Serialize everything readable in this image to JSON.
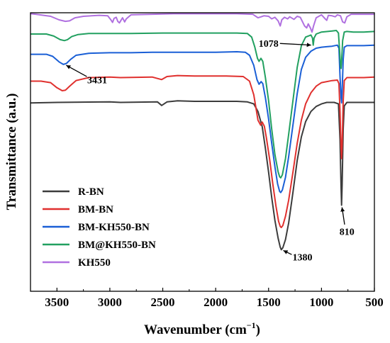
{
  "chart_data": {
    "type": "line",
    "xlabel": "Wavenumber (cm",
    "xlabel_sup": "−1",
    "xlabel_close": ")",
    "ylabel": "Transmittance (a.u.)",
    "xlim": [
      3750,
      500
    ],
    "x_reversed": true,
    "ylim": [
      0,
      5.5
    ],
    "y_ticks_labeled": false,
    "x_ticks": [
      3500,
      3000,
      2500,
      2000,
      1500,
      1000,
      500
    ],
    "x_tick_labels": [
      "3500",
      "3000",
      "2500",
      "2000",
      "1500",
      "1000",
      "500"
    ],
    "legend_position": "bottom-left",
    "grid": false,
    "series": [
      {
        "name": "R-BN",
        "color": "#3c3c3c",
        "points": [
          [
            3750,
            3.72
          ],
          [
            3500,
            3.73
          ],
          [
            3000,
            3.74
          ],
          [
            2900,
            3.73
          ],
          [
            2550,
            3.74
          ],
          [
            2510,
            3.67
          ],
          [
            2460,
            3.74
          ],
          [
            2360,
            3.76
          ],
          [
            2200,
            3.75
          ],
          [
            1800,
            3.75
          ],
          [
            1700,
            3.74
          ],
          [
            1640,
            3.7
          ],
          [
            1600,
            3.55
          ],
          [
            1560,
            3.25
          ],
          [
            1530,
            2.82
          ],
          [
            1500,
            2.35
          ],
          [
            1470,
            1.85
          ],
          [
            1440,
            1.4
          ],
          [
            1410,
            1.05
          ],
          [
            1390,
            0.87
          ],
          [
            1380,
            0.82
          ],
          [
            1365,
            0.86
          ],
          [
            1340,
            1.02
          ],
          [
            1310,
            1.35
          ],
          [
            1270,
            1.95
          ],
          [
            1230,
            2.58
          ],
          [
            1190,
            3.05
          ],
          [
            1150,
            3.35
          ],
          [
            1100,
            3.55
          ],
          [
            1050,
            3.65
          ],
          [
            1000,
            3.7
          ],
          [
            950,
            3.73
          ],
          [
            880,
            3.73
          ],
          [
            840,
            3.7
          ],
          [
            825,
            3.0
          ],
          [
            815,
            2.05
          ],
          [
            810,
            1.7
          ],
          [
            805,
            2.1
          ],
          [
            795,
            3.2
          ],
          [
            785,
            3.66
          ],
          [
            760,
            3.73
          ],
          [
            700,
            3.73
          ],
          [
            600,
            3.73
          ],
          [
            500,
            3.73
          ]
        ]
      },
      {
        "name": "BM-BN",
        "color": "#e0302e",
        "points": [
          [
            3750,
            4.15
          ],
          [
            3650,
            4.15
          ],
          [
            3560,
            4.12
          ],
          [
            3500,
            4.02
          ],
          [
            3450,
            3.96
          ],
          [
            3420,
            3.97
          ],
          [
            3380,
            4.05
          ],
          [
            3320,
            4.16
          ],
          [
            3200,
            4.22
          ],
          [
            3000,
            4.23
          ],
          [
            2900,
            4.22
          ],
          [
            2600,
            4.23
          ],
          [
            2510,
            4.18
          ],
          [
            2460,
            4.24
          ],
          [
            2360,
            4.26
          ],
          [
            2200,
            4.25
          ],
          [
            1900,
            4.25
          ],
          [
            1740,
            4.24
          ],
          [
            1680,
            4.15
          ],
          [
            1640,
            3.88
          ],
          [
            1600,
            3.38
          ],
          [
            1575,
            3.28
          ],
          [
            1560,
            3.34
          ],
          [
            1540,
            3.26
          ],
          [
            1520,
            3.02
          ],
          [
            1490,
            2.6
          ],
          [
            1460,
            2.12
          ],
          [
            1430,
            1.68
          ],
          [
            1405,
            1.38
          ],
          [
            1390,
            1.28
          ],
          [
            1380,
            1.26
          ],
          [
            1365,
            1.3
          ],
          [
            1340,
            1.48
          ],
          [
            1310,
            1.8
          ],
          [
            1270,
            2.35
          ],
          [
            1230,
            2.92
          ],
          [
            1190,
            3.38
          ],
          [
            1150,
            3.7
          ],
          [
            1100,
            3.92
          ],
          [
            1050,
            4.05
          ],
          [
            1000,
            4.12
          ],
          [
            900,
            4.16
          ],
          [
            850,
            4.17
          ],
          [
            835,
            4.1
          ],
          [
            825,
            3.55
          ],
          [
            815,
            2.82
          ],
          [
            810,
            2.62
          ],
          [
            805,
            2.88
          ],
          [
            795,
            3.75
          ],
          [
            785,
            4.16
          ],
          [
            760,
            4.22
          ],
          [
            700,
            4.22
          ],
          [
            600,
            4.22
          ],
          [
            500,
            4.23
          ]
        ]
      },
      {
        "name": "BM-KH550-BN",
        "color": "#1a5fd6",
        "points": [
          [
            3750,
            4.68
          ],
          [
            3600,
            4.68
          ],
          [
            3540,
            4.64
          ],
          [
            3480,
            4.53
          ],
          [
            3440,
            4.48
          ],
          [
            3410,
            4.5
          ],
          [
            3370,
            4.58
          ],
          [
            3320,
            4.66
          ],
          [
            3200,
            4.7
          ],
          [
            3000,
            4.71
          ],
          [
            2800,
            4.71
          ],
          [
            2600,
            4.72
          ],
          [
            2400,
            4.72
          ],
          [
            2200,
            4.72
          ],
          [
            2000,
            4.72
          ],
          [
            1800,
            4.73
          ],
          [
            1720,
            4.72
          ],
          [
            1680,
            4.66
          ],
          [
            1640,
            4.46
          ],
          [
            1610,
            4.18
          ],
          [
            1590,
            4.09
          ],
          [
            1570,
            4.14
          ],
          [
            1555,
            4.1
          ],
          [
            1530,
            3.82
          ],
          [
            1500,
            3.4
          ],
          [
            1470,
            2.92
          ],
          [
            1440,
            2.46
          ],
          [
            1415,
            2.12
          ],
          [
            1395,
            1.97
          ],
          [
            1385,
            1.95
          ],
          [
            1370,
            2.0
          ],
          [
            1340,
            2.25
          ],
          [
            1310,
            2.66
          ],
          [
            1270,
            3.28
          ],
          [
            1230,
            3.9
          ],
          [
            1190,
            4.38
          ],
          [
            1150,
            4.62
          ],
          [
            1100,
            4.74
          ],
          [
            1050,
            4.8
          ],
          [
            1000,
            4.82
          ],
          [
            950,
            4.83
          ],
          [
            900,
            4.84
          ],
          [
            850,
            4.86
          ],
          [
            835,
            4.8
          ],
          [
            825,
            4.25
          ],
          [
            815,
            3.82
          ],
          [
            810,
            3.72
          ],
          [
            805,
            3.95
          ],
          [
            795,
            4.58
          ],
          [
            785,
            4.82
          ],
          [
            760,
            4.85
          ],
          [
            700,
            4.85
          ],
          [
            600,
            4.85
          ],
          [
            500,
            4.86
          ]
        ]
      },
      {
        "name": "BM@KH550-BN",
        "color": "#22a060",
        "points": [
          [
            3750,
            5.08
          ],
          [
            3600,
            5.08
          ],
          [
            3530,
            5.04
          ],
          [
            3470,
            4.97
          ],
          [
            3430,
            4.95
          ],
          [
            3400,
            4.97
          ],
          [
            3360,
            5.03
          ],
          [
            3300,
            5.07
          ],
          [
            3200,
            5.09
          ],
          [
            3000,
            5.09
          ],
          [
            2800,
            5.09
          ],
          [
            2500,
            5.1
          ],
          [
            2300,
            5.1
          ],
          [
            2000,
            5.1
          ],
          [
            1800,
            5.1
          ],
          [
            1700,
            5.09
          ],
          [
            1660,
            5.02
          ],
          [
            1630,
            4.82
          ],
          [
            1605,
            4.6
          ],
          [
            1590,
            4.54
          ],
          [
            1572,
            4.6
          ],
          [
            1555,
            4.54
          ],
          [
            1530,
            4.22
          ],
          [
            1500,
            3.76
          ],
          [
            1470,
            3.2
          ],
          [
            1440,
            2.7
          ],
          [
            1410,
            2.36
          ],
          [
            1395,
            2.26
          ],
          [
            1385,
            2.24
          ],
          [
            1370,
            2.3
          ],
          [
            1340,
            2.62
          ],
          [
            1310,
            3.1
          ],
          [
            1270,
            3.76
          ],
          [
            1230,
            4.42
          ],
          [
            1190,
            4.85
          ],
          [
            1150,
            5.02
          ],
          [
            1100,
            5.06
          ],
          [
            1085,
            5.0
          ],
          [
            1078,
            4.86
          ],
          [
            1070,
            5.0
          ],
          [
            1050,
            5.08
          ],
          [
            1000,
            5.12
          ],
          [
            900,
            5.14
          ],
          [
            860,
            5.15
          ],
          [
            840,
            5.1
          ],
          [
            830,
            4.78
          ],
          [
            820,
            4.46
          ],
          [
            815,
            4.4
          ],
          [
            810,
            4.52
          ],
          [
            800,
            4.95
          ],
          [
            785,
            5.12
          ],
          [
            760,
            5.13
          ],
          [
            700,
            5.12
          ],
          [
            600,
            5.12
          ],
          [
            500,
            5.13
          ]
        ]
      },
      {
        "name": "KH550",
        "color": "#b070e0",
        "points": [
          [
            3750,
            5.48
          ],
          [
            3700,
            5.47
          ],
          [
            3560,
            5.43
          ],
          [
            3480,
            5.36
          ],
          [
            3420,
            5.33
          ],
          [
            3380,
            5.34
          ],
          [
            3330,
            5.4
          ],
          [
            3250,
            5.43
          ],
          [
            3100,
            5.45
          ],
          [
            3020,
            5.44
          ],
          [
            2990,
            5.36
          ],
          [
            2975,
            5.31
          ],
          [
            2960,
            5.39
          ],
          [
            2940,
            5.41
          ],
          [
            2925,
            5.33
          ],
          [
            2910,
            5.3
          ],
          [
            2895,
            5.35
          ],
          [
            2880,
            5.4
          ],
          [
            2860,
            5.32
          ],
          [
            2845,
            5.38
          ],
          [
            2800,
            5.46
          ],
          [
            2600,
            5.47
          ],
          [
            2400,
            5.48
          ],
          [
            2200,
            5.48
          ],
          [
            2000,
            5.48
          ],
          [
            1800,
            5.48
          ],
          [
            1650,
            5.47
          ],
          [
            1600,
            5.4
          ],
          [
            1570,
            5.42
          ],
          [
            1545,
            5.44
          ],
          [
            1500,
            5.43
          ],
          [
            1470,
            5.38
          ],
          [
            1440,
            5.41
          ],
          [
            1410,
            5.34
          ],
          [
            1390,
            5.24
          ],
          [
            1375,
            5.36
          ],
          [
            1350,
            5.41
          ],
          [
            1320,
            5.38
          ],
          [
            1300,
            5.42
          ],
          [
            1260,
            5.37
          ],
          [
            1230,
            5.43
          ],
          [
            1200,
            5.41
          ],
          [
            1160,
            5.24
          ],
          [
            1140,
            5.2
          ],
          [
            1125,
            5.28
          ],
          [
            1105,
            5.2
          ],
          [
            1090,
            5.12
          ],
          [
            1075,
            5.24
          ],
          [
            1050,
            5.4
          ],
          [
            1000,
            5.46
          ],
          [
            965,
            5.38
          ],
          [
            950,
            5.35
          ],
          [
            935,
            5.45
          ],
          [
            900,
            5.44
          ],
          [
            870,
            5.42
          ],
          [
            850,
            5.46
          ],
          [
            820,
            5.44
          ],
          [
            800,
            5.32
          ],
          [
            780,
            5.3
          ],
          [
            760,
            5.42
          ],
          [
            720,
            5.47
          ],
          [
            650,
            5.47
          ],
          [
            600,
            5.47
          ],
          [
            500,
            5.47
          ]
        ]
      }
    ],
    "annotations": [
      {
        "text": "3431",
        "x": 3431,
        "y": 4.48,
        "label_x": 3120,
        "label_y": 4.18
      },
      {
        "text": "1078",
        "x": 1078,
        "y": 4.86,
        "label_x": 1500,
        "label_y": 4.9
      },
      {
        "text": "1380",
        "x": 1380,
        "y": 0.82,
        "label_x": 1180,
        "label_y": 0.68
      },
      {
        "text": "810",
        "x": 810,
        "y": 1.7,
        "label_x": 760,
        "label_y": 1.18
      }
    ]
  }
}
